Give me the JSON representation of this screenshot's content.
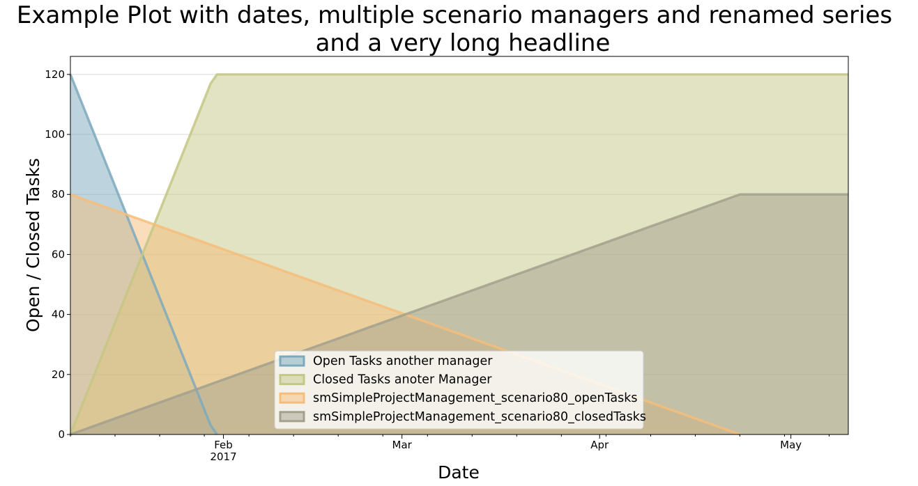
{
  "chart_data": {
    "type": "area",
    "title": [
      "Example Plot with dates, multiple scenario managers and renamed series",
      "and a very long headline"
    ],
    "xlabel": "Date",
    "ylabel": "Open / Closed Tasks",
    "xlim": [
      "2017-01-08",
      "2017-05-10"
    ],
    "ylim": [
      0,
      126
    ],
    "yticks": [
      0,
      20,
      40,
      60,
      80,
      100,
      120
    ],
    "xticks": [
      {
        "date": "2017-02-01",
        "label": "Feb",
        "sublabel": "2017"
      },
      {
        "date": "2017-03-01",
        "label": "Mar",
        "sublabel": ""
      },
      {
        "date": "2017-04-01",
        "label": "Apr",
        "sublabel": ""
      },
      {
        "date": "2017-05-01",
        "label": "May",
        "sublabel": ""
      }
    ],
    "grid": "horizontal",
    "legend_position": "lower center",
    "series": [
      {
        "name": "Open Tasks another manager",
        "color": "#7ca9bd",
        "points": [
          [
            "2017-01-08",
            120
          ],
          [
            "2017-01-30",
            3
          ],
          [
            "2017-01-31",
            0
          ]
        ]
      },
      {
        "name": "Closed Tasks anoter Manager",
        "color": "#c4c785",
        "points": [
          [
            "2017-01-08",
            0
          ],
          [
            "2017-01-30",
            117
          ],
          [
            "2017-01-31",
            120
          ],
          [
            "2017-05-10",
            120
          ]
        ]
      },
      {
        "name": "smSimpleProjectManagement_scenario80_openTasks",
        "color": "#f6bd7a",
        "points": [
          [
            "2017-01-08",
            80
          ],
          [
            "2017-04-23",
            0
          ]
        ]
      },
      {
        "name": "smSimpleProjectManagement_scenario80_closedTasks",
        "color": "#a3a08d",
        "points": [
          [
            "2017-01-08",
            0
          ],
          [
            "2017-04-23",
            80
          ],
          [
            "2017-05-10",
            80
          ]
        ]
      }
    ]
  }
}
